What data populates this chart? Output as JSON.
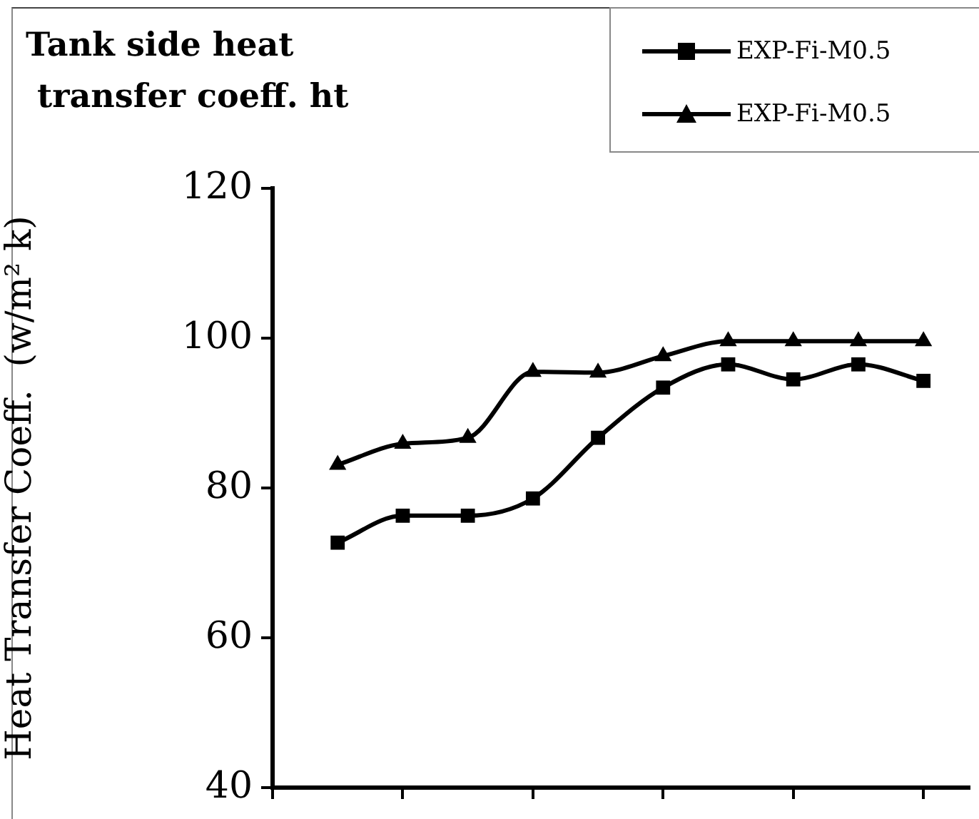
{
  "chart_data": {
    "type": "line",
    "title": "Tank side heat\n transfer coeff. ht",
    "ylabel": "Heat Transfer Coeff.  (w/m² k)",
    "categories": [
      null,
      null,
      null,
      null,
      null,
      null,
      null,
      null,
      null,
      null
    ],
    "series": [
      {
        "name": "EXP-Fi-M0.5",
        "color": "#000000",
        "marker": "square",
        "values": [
          72.7,
          76.3,
          76.3,
          78.6,
          86.7,
          93.4,
          96.5,
          94.5,
          96.5,
          94.3
        ]
      },
      {
        "name": "EXP-Fi-M0.5",
        "color": "#000000",
        "marker": "triangle",
        "values": [
          83.1,
          85.9,
          86.7,
          95.5,
          95.4,
          97.6,
          99.6,
          99.6,
          99.6,
          99.6
        ]
      }
    ],
    "ylim": [
      40,
      120
    ],
    "yticks": [
      40,
      60,
      80,
      100,
      120
    ],
    "grid": false,
    "legend": "top right",
    "line_style": "solid",
    "tick_labels": "y"
  }
}
